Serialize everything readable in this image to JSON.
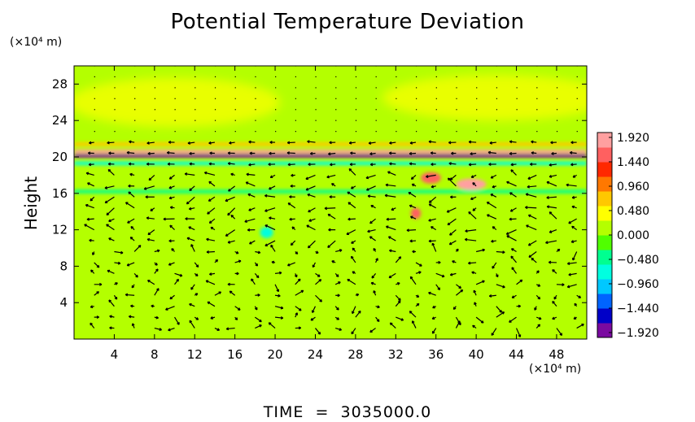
{
  "chart_data": {
    "type": "heatmap",
    "title": "Potential Temperature Deviation",
    "ylabel": "Height",
    "x_unit": "(×10⁴ m)",
    "y_unit": "(×10⁴ m)",
    "xlim": [
      0,
      51
    ],
    "ylim": [
      0,
      30
    ],
    "x_ticks": [
      4,
      8,
      12,
      16,
      20,
      24,
      28,
      32,
      36,
      40,
      44,
      48
    ],
    "y_ticks": [
      4,
      8,
      12,
      16,
      20,
      24,
      28
    ],
    "colorbar": {
      "range": [
        -1.92,
        1.92
      ],
      "labels": [
        "1.920",
        "1.440",
        "0.960",
        "0.480",
        "0.000",
        "−0.480",
        "−0.960",
        "−1.440",
        "−1.920"
      ],
      "colors": [
        "#7a0aa0",
        "#0000c8",
        "#0064ff",
        "#00c8ff",
        "#00ffe0",
        "#00ff90",
        "#50ff00",
        "#b4ff00",
        "#ffff00",
        "#ffc800",
        "#ff7800",
        "#ff2800",
        "#ff6060",
        "#ffa0a0"
      ]
    },
    "background_value": 0.2,
    "features": [
      {
        "name": "tropopause-warm-band",
        "x": [
          0,
          51
        ],
        "y": 20.6,
        "value": 1.9
      },
      {
        "name": "tropopause-cold-band",
        "x": [
          0,
          51
        ],
        "y": 20.1,
        "value": -1.9
      },
      {
        "name": "upper-cyan-band",
        "x": [
          0,
          51
        ],
        "y": 19.3,
        "value": -0.6
      },
      {
        "name": "upper-yellow-band",
        "x": [
          0,
          51
        ],
        "y": 21.4,
        "value": 0.8
      },
      {
        "name": "mid-cyan-band",
        "x": [
          0,
          51
        ],
        "y": 16.2,
        "value": -0.4
      },
      {
        "name": "warm-patch",
        "x": [
          38,
          41
        ],
        "y": 17,
        "value": 1.9
      },
      {
        "name": "warm-patch",
        "x": [
          34.5,
          36.5
        ],
        "y": 17.7,
        "value": 1.4
      },
      {
        "name": "warm-patch",
        "x": [
          33.5,
          34.5
        ],
        "y": 13.8,
        "value": 1.4
      },
      {
        "name": "cold-patch",
        "x": [
          18.5,
          19.8
        ],
        "y": 11.7,
        "value": -0.7
      }
    ]
  },
  "time_label": "TIME",
  "time_equals": "=",
  "time_value": "3035000.0"
}
